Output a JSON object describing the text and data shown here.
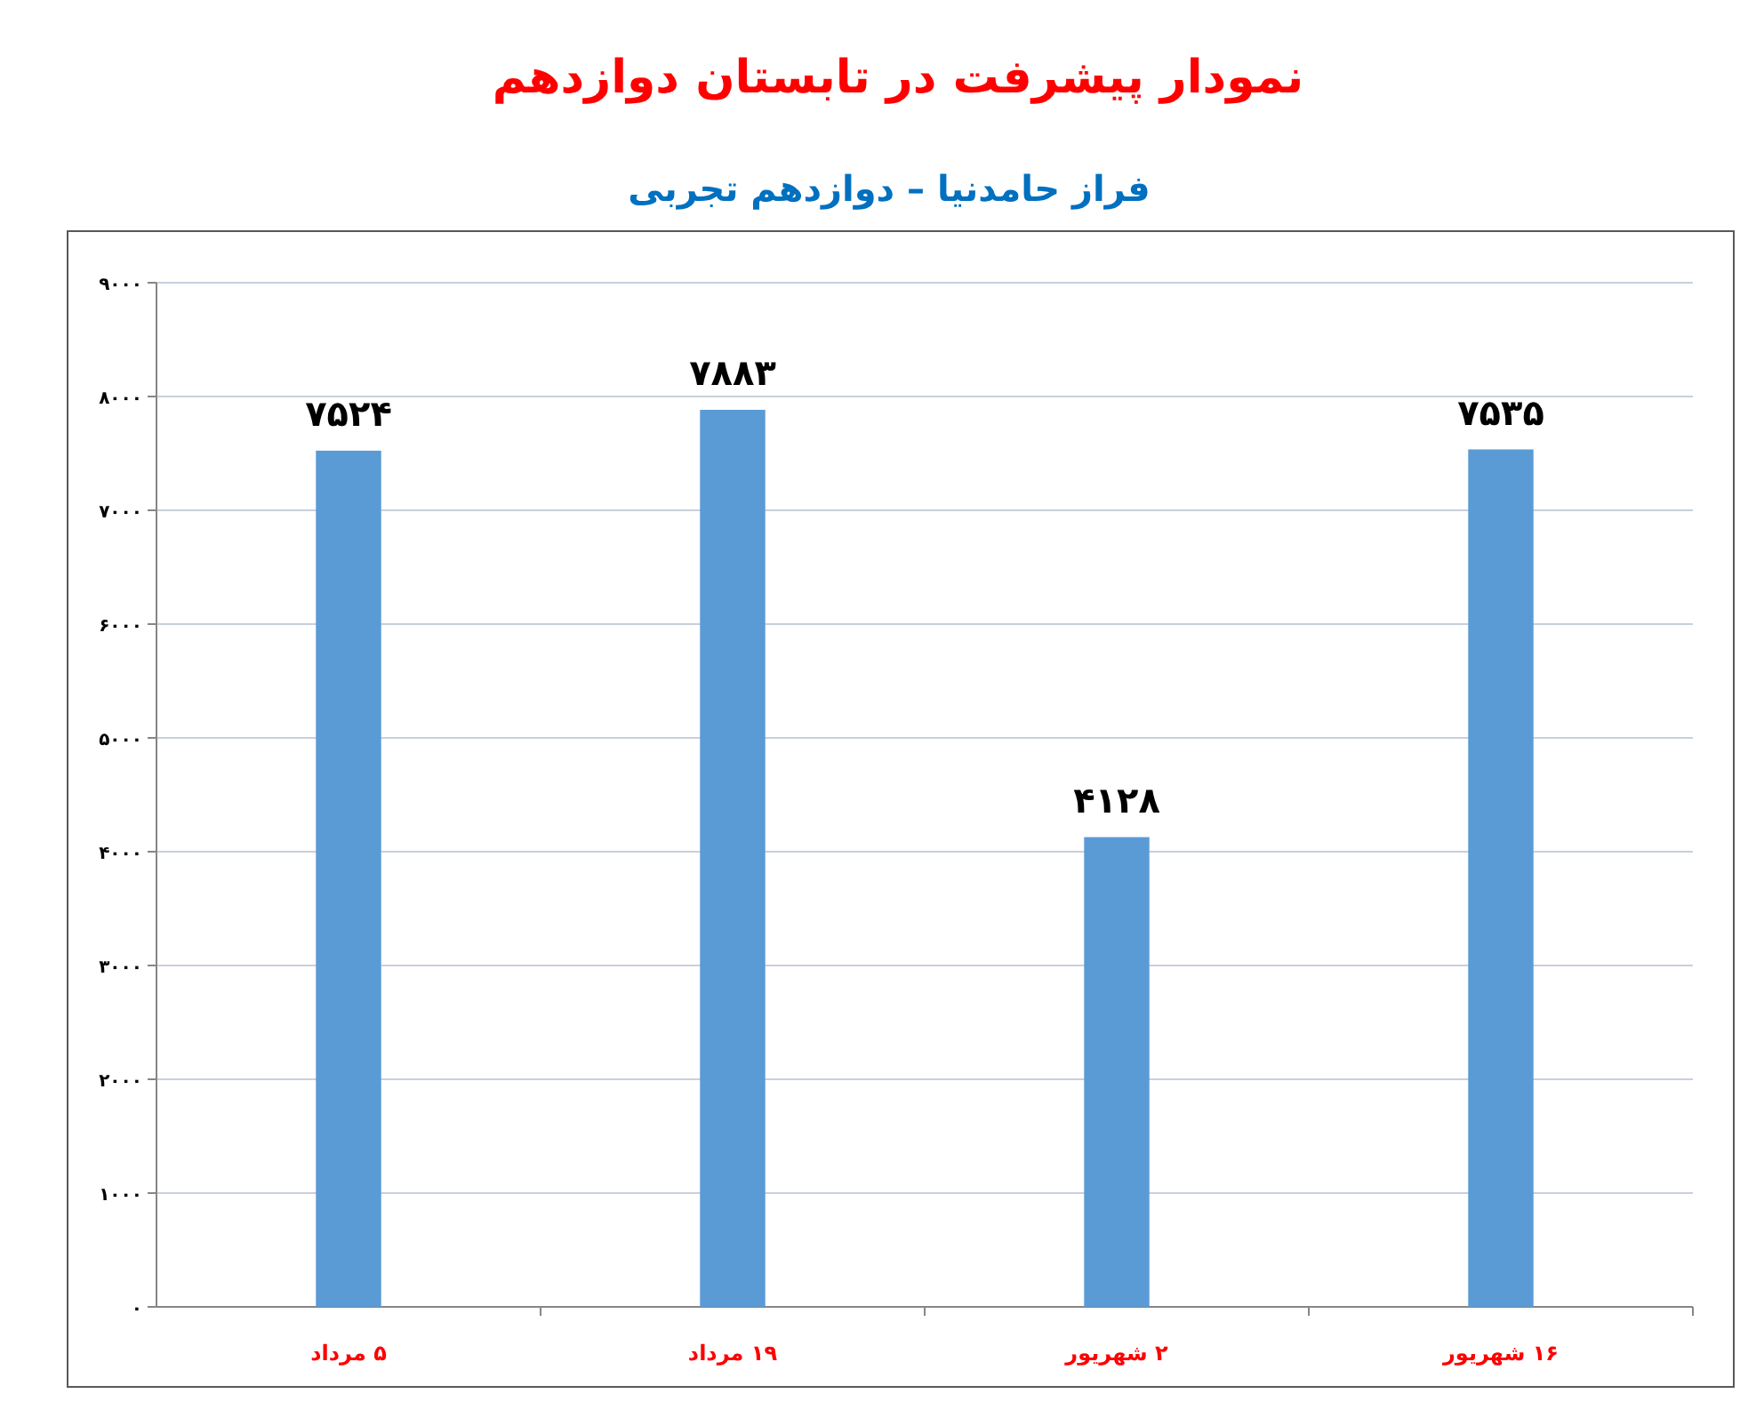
{
  "chart_data": {
    "type": "bar",
    "title": "نمودار پیشرفت در تابستان دوازدهم",
    "subtitle": "فراز حامدنیا – دوازدهم تجربی",
    "categories": [
      "۵ مرداد",
      "۱۹ مرداد",
      "۲ شهریور",
      "۱۶ شهریور"
    ],
    "values": [
      7524,
      7883,
      4128,
      7535
    ],
    "color": "#5b9bd5",
    "value_labels": [
      "۷۵۲۴",
      "۷۸۸۳",
      "۴۱۲۸",
      "۷۵۳۵"
    ],
    "ylim": [
      0,
      9000
    ],
    "yticks": [
      {
        "value": 0,
        "label": "۰"
      },
      {
        "value": 1000,
        "label": "۱۰۰۰"
      },
      {
        "value": 2000,
        "label": "۲۰۰۰"
      },
      {
        "value": 3000,
        "label": "۳۰۰۰"
      },
      {
        "value": 4000,
        "label": "۴۰۰۰"
      },
      {
        "value": 5000,
        "label": "۵۰۰۰"
      },
      {
        "value": 6000,
        "label": "۶۰۰۰"
      },
      {
        "value": 7000,
        "label": "۷۰۰۰"
      },
      {
        "value": 8000,
        "label": "۸۰۰۰"
      },
      {
        "value": 9000,
        "label": "۹۰۰۰"
      }
    ],
    "grid": "y"
  }
}
